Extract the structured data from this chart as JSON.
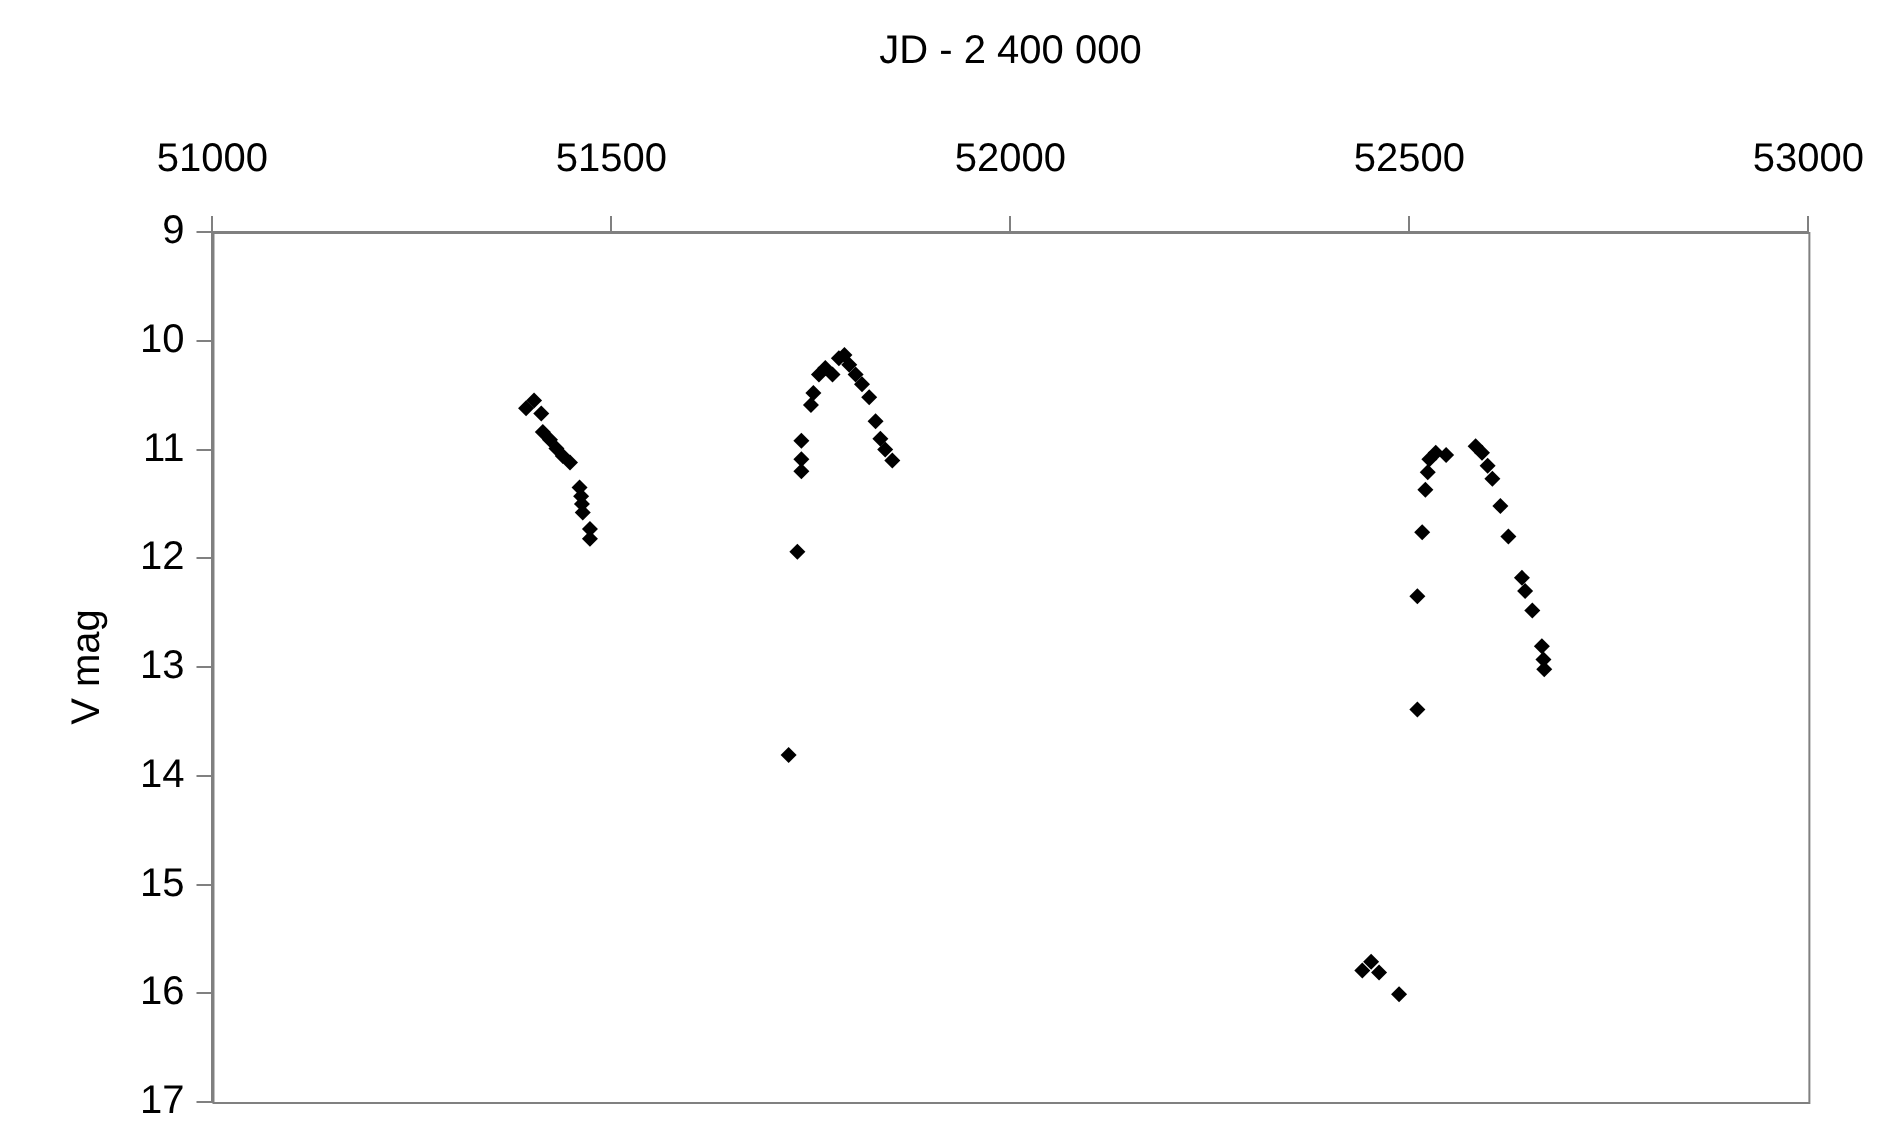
{
  "chart_data": {
    "type": "scatter",
    "xlabel": "JD - 2 400 000",
    "ylabel": "V mag",
    "xlim": [
      51000,
      53000
    ],
    "xticks": [
      51000,
      51500,
      52000,
      52500,
      53000
    ],
    "ylim": [
      17,
      9
    ],
    "yticks": [
      9,
      10,
      11,
      12,
      13,
      14,
      15,
      16,
      17
    ],
    "grid": false,
    "legend": false,
    "marker": "diamond",
    "series": [
      {
        "color": "#000000",
        "x": [
          51393,
          51403,
          51412,
          51414,
          51423,
          51431,
          51439,
          51448,
          51460,
          51462,
          51463,
          51464,
          51473,
          51473,
          51722,
          51733,
          51738,
          51738,
          51738,
          51750,
          51753,
          51760,
          51768,
          51777,
          51785,
          51792,
          51798,
          51806,
          51814,
          51823,
          51831,
          51837,
          51843,
          51852,
          52441,
          52452,
          52462,
          52487,
          52510,
          52510,
          52516,
          52520,
          52523,
          52525,
          52533,
          52546,
          52583,
          52591,
          52598,
          52604,
          52614,
          52624,
          52641,
          52645,
          52654,
          52666,
          52668,
          52669
        ],
        "values": [
          10.62,
          10.55,
          10.67,
          10.84,
          10.91,
          10.99,
          11.06,
          11.12,
          11.35,
          11.43,
          11.5,
          11.58,
          11.73,
          11.82,
          13.81,
          11.94,
          10.92,
          11.09,
          11.2,
          10.59,
          10.48,
          10.31,
          10.25,
          10.31,
          10.16,
          10.13,
          10.22,
          10.31,
          10.4,
          10.52,
          10.74,
          10.9,
          11.0,
          11.1,
          15.79,
          15.71,
          15.81,
          16.01,
          13.39,
          12.35,
          11.76,
          11.37,
          11.21,
          11.09,
          11.03,
          11.05,
          10.97,
          11.03,
          11.15,
          11.27,
          11.52,
          11.8,
          12.18,
          12.3,
          12.48,
          12.81,
          12.93,
          13.02
        ]
      }
    ]
  }
}
